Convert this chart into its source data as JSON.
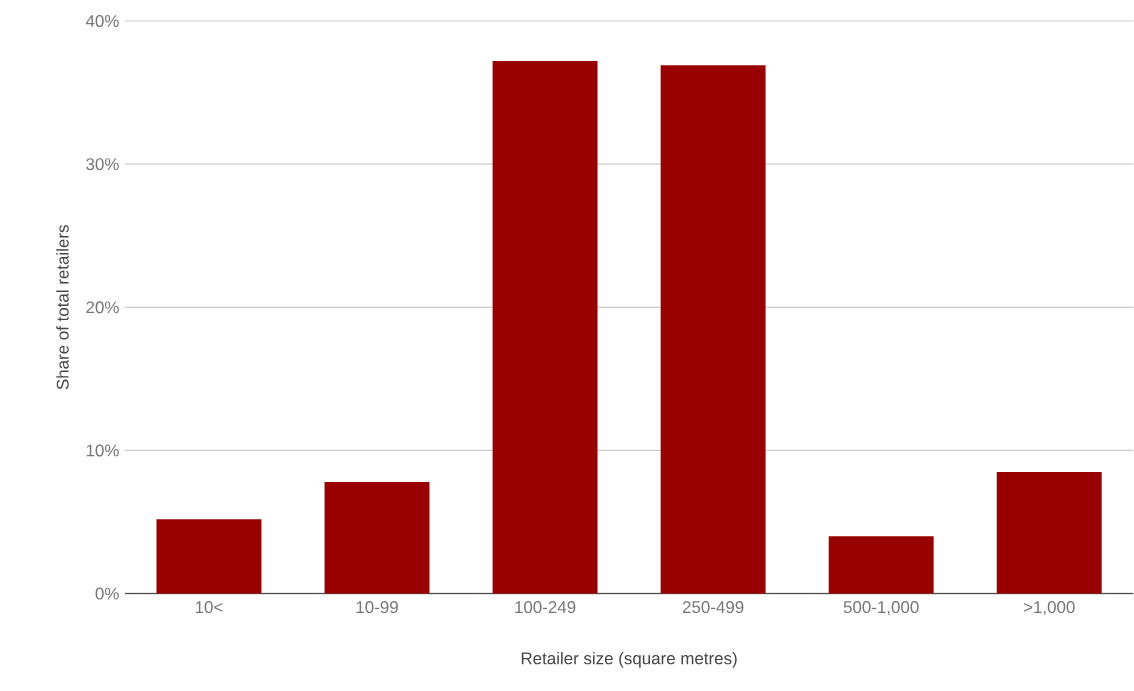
{
  "chart_data": {
    "type": "bar",
    "xlabel": "Retailer size (square metres)",
    "ylabel": "Share of total retailers",
    "categories": [
      "10<",
      "10-99",
      "100-249",
      "250-499",
      "500-1,000",
      ">1,000"
    ],
    "values": [
      5.2,
      7.8,
      37.2,
      36.9,
      4.0,
      8.5
    ],
    "color": "#990000",
    "ylim": [
      0,
      40
    ],
    "yticks": [
      {
        "value": 0,
        "label": "0%"
      },
      {
        "value": 10,
        "label": "10%"
      },
      {
        "value": 20,
        "label": "20%"
      },
      {
        "value": 30,
        "label": "30%"
      },
      {
        "value": 40,
        "label": "40%"
      }
    ],
    "grid": "y"
  }
}
